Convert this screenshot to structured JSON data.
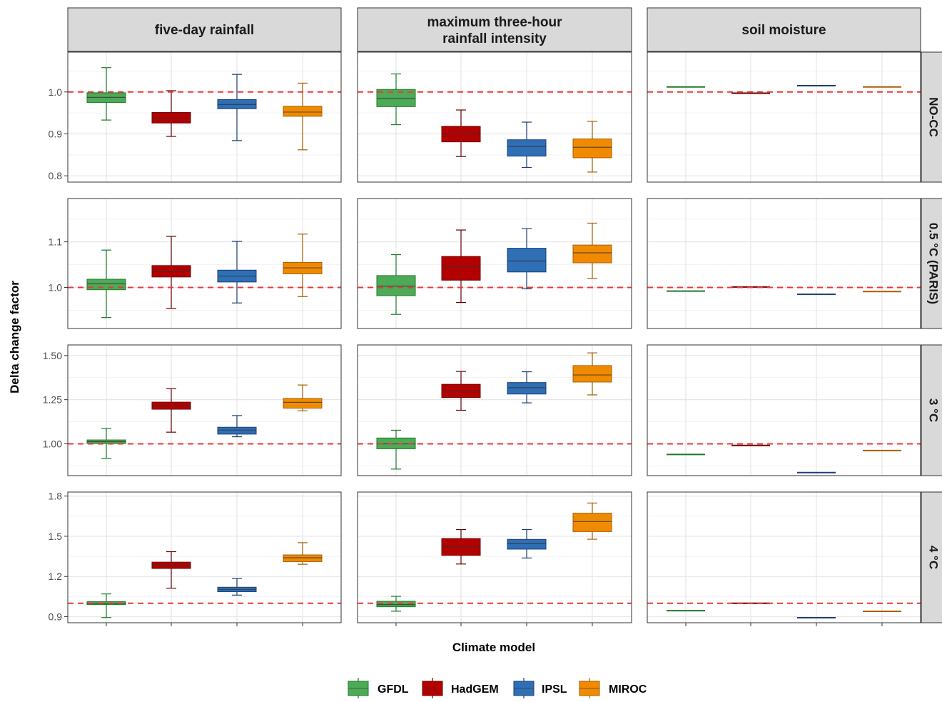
{
  "chart_data": {
    "type": "boxplot",
    "xlabel": "Climate model",
    "ylabel": "Delta change factor",
    "reference_line": 1.0,
    "columns": [
      "five-day rainfall",
      "maximum three-hour rainfall intensity",
      "soil moisture"
    ],
    "rows": [
      "NO-CC",
      "0.5 °C (PARIS)",
      "3 °C",
      "4 °C"
    ],
    "legend": {
      "position": "bottom",
      "items": [
        {
          "name": "GFDL",
          "fill": "#4DAA57",
          "stroke": "#1E7A2A"
        },
        {
          "name": "HadGEM",
          "fill": "#B30000",
          "stroke": "#6E0000"
        },
        {
          "name": "IPSL",
          "fill": "#2F6FB5",
          "stroke": "#1B3F73"
        },
        {
          "name": "MIROC",
          "fill": "#F08A00",
          "stroke": "#A85E00"
        }
      ]
    },
    "row_axes": [
      {
        "ylim": [
          0.785,
          1.095
        ],
        "ticks": [
          0.8,
          0.9,
          1.0
        ],
        "tick_labels": [
          "0.8",
          "0.9",
          "1.0"
        ]
      },
      {
        "ylim": [
          0.91,
          1.195
        ],
        "ticks": [
          1.0,
          1.1
        ],
        "tick_labels": [
          "1.0",
          "1.1"
        ]
      },
      {
        "ylim": [
          0.82,
          1.56
        ],
        "ticks": [
          1.0,
          1.25,
          1.5
        ],
        "tick_labels": [
          "1.00",
          "1.25",
          "1.50"
        ]
      },
      {
        "ylim": [
          0.855,
          1.83
        ],
        "ticks": [
          0.9,
          1.2,
          1.5,
          1.8
        ],
        "tick_labels": [
          "0.9",
          "1.2",
          "1.5",
          "1.8"
        ]
      }
    ],
    "panels": [
      [
        [
          [
            0.933,
            0.975,
            0.987,
            0.998,
            1.058
          ],
          [
            0.894,
            0.926,
            0.938,
            0.951,
            1.003
          ],
          [
            0.884,
            0.96,
            0.97,
            0.982,
            1.042
          ],
          [
            0.862,
            0.942,
            0.952,
            0.966,
            1.021
          ]
        ],
        [
          [
            0.922,
            0.965,
            0.985,
            1.006,
            1.043
          ],
          [
            0.846,
            0.881,
            0.9,
            0.918,
            0.957
          ],
          [
            0.82,
            0.847,
            0.87,
            0.886,
            0.928
          ],
          [
            0.809,
            0.843,
            0.868,
            0.888,
            0.93
          ]
        ],
        [
          [
            1.012,
            1.012,
            1.012,
            1.012,
            1.012
          ],
          [
            0.997,
            0.997,
            0.997,
            0.997,
            0.997
          ],
          [
            1.015,
            1.015,
            1.015,
            1.015,
            1.015
          ],
          [
            1.012,
            1.012,
            1.012,
            1.012,
            1.012
          ]
        ]
      ],
      [
        [
          [
            0.934,
            0.995,
            1.008,
            1.018,
            1.082
          ],
          [
            0.954,
            1.023,
            1.035,
            1.048,
            1.112
          ],
          [
            0.966,
            1.012,
            1.025,
            1.038,
            1.101
          ],
          [
            0.98,
            1.03,
            1.043,
            1.055,
            1.117
          ]
        ],
        [
          [
            0.941,
            0.982,
            1.003,
            1.026,
            1.072
          ],
          [
            0.967,
            1.016,
            1.044,
            1.068,
            1.126
          ],
          [
            0.997,
            1.034,
            1.058,
            1.086,
            1.129
          ],
          [
            1.02,
            1.054,
            1.076,
            1.093,
            1.141
          ]
        ],
        [
          [
            0.992,
            0.992,
            0.992,
            0.992,
            0.992
          ],
          [
            1.001,
            1.001,
            1.001,
            1.001,
            1.001
          ],
          [
            0.985,
            0.985,
            0.985,
            0.985,
            0.985
          ],
          [
            0.991,
            0.991,
            0.991,
            0.991,
            0.991
          ]
        ]
      ],
      [
        [
          [
            0.917,
            1.002,
            1.012,
            1.022,
            1.087
          ],
          [
            1.066,
            1.196,
            1.215,
            1.236,
            1.312
          ],
          [
            1.04,
            1.055,
            1.078,
            1.094,
            1.16
          ],
          [
            1.187,
            1.202,
            1.235,
            1.257,
            1.333
          ]
        ],
        [
          [
            0.857,
            0.972,
            1.0,
            1.033,
            1.077
          ],
          [
            1.19,
            1.262,
            1.3,
            1.337,
            1.41
          ],
          [
            1.232,
            1.282,
            1.318,
            1.347,
            1.408
          ],
          [
            1.277,
            1.35,
            1.39,
            1.443,
            1.515
          ]
        ],
        [
          [
            0.94,
            0.94,
            0.94,
            0.94,
            0.94
          ],
          [
            0.991,
            0.991,
            0.991,
            0.991,
            0.991
          ],
          [
            0.837,
            0.837,
            0.837,
            0.837,
            0.837
          ],
          [
            0.962,
            0.962,
            0.962,
            0.962,
            0.962
          ]
        ]
      ],
      [
        [
          [
            0.894,
            0.99,
            0.998,
            1.012,
            1.07
          ],
          [
            1.113,
            1.26,
            1.283,
            1.307,
            1.385
          ],
          [
            1.061,
            1.087,
            1.103,
            1.12,
            1.185
          ],
          [
            1.291,
            1.311,
            1.34,
            1.361,
            1.452
          ]
        ],
        [
          [
            0.941,
            0.974,
            0.99,
            1.015,
            1.052
          ],
          [
            1.293,
            1.358,
            1.418,
            1.483,
            1.55
          ],
          [
            1.338,
            1.404,
            1.445,
            1.477,
            1.55
          ],
          [
            1.478,
            1.535,
            1.61,
            1.672,
            1.748
          ]
        ],
        [
          [
            0.945,
            0.945,
            0.945,
            0.945,
            0.945
          ],
          [
            1.0,
            1.0,
            1.0,
            1.0,
            1.0
          ],
          [
            0.892,
            0.892,
            0.892,
            0.892,
            0.892
          ],
          [
            0.94,
            0.94,
            0.94,
            0.94,
            0.94
          ]
        ]
      ]
    ]
  }
}
